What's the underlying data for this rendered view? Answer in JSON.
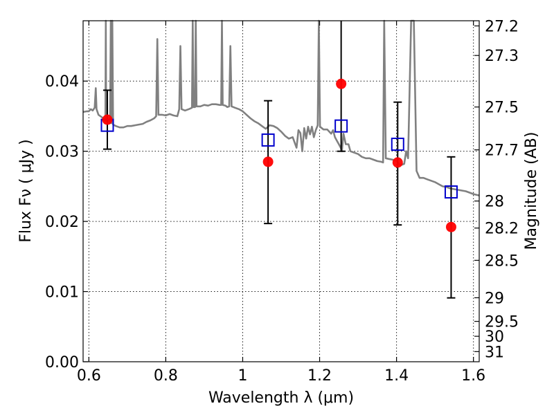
{
  "chart_data": {
    "type": "scatter",
    "title": "",
    "xlabel": "Wavelength  λ (μm)",
    "ylabel": "Flux  Fν  ( μJy )",
    "y2label": "Magnitude (AB)",
    "xlim": [
      0.585,
      1.615
    ],
    "ylim": [
      0.0,
      0.0486
    ],
    "grid": true,
    "x_ticks": [
      0.6,
      0.8,
      1.0,
      1.2,
      1.4,
      1.6
    ],
    "x_tick_labels": [
      "0.6",
      "0.8",
      "1",
      "1.2",
      "1.4",
      "1.6"
    ],
    "y_ticks": [
      0.0,
      0.01,
      0.02,
      0.03,
      0.04
    ],
    "y_tick_labels": [
      "0.00",
      "0.01",
      "0.02",
      "0.03",
      "0.04"
    ],
    "mag_ticks": [
      27.2,
      27.3,
      27.5,
      27.7,
      28,
      28.2,
      28.5,
      29,
      29.5,
      30,
      31
    ],
    "mag_tick_labels": [
      "27.2",
      "27.3",
      "27.5",
      "27.7",
      "28",
      "28.2",
      "28.5",
      "29",
      "29.5",
      "30",
      "31"
    ],
    "series": [
      {
        "marker": "circle",
        "color": "#ff0000",
        "points": [
          [
            0.648,
            0.0345
          ],
          [
            1.066,
            0.0285
          ],
          [
            1.256,
            0.0396
          ],
          [
            1.403,
            0.0284
          ],
          [
            1.542,
            0.0192
          ]
        ]
      },
      {
        "marker": "open-square",
        "color": "#0000cc",
        "points": [
          [
            0.648,
            0.0337
          ],
          [
            1.066,
            0.0316
          ],
          [
            1.256,
            0.0336
          ],
          [
            1.403,
            0.031
          ],
          [
            1.542,
            0.0242
          ]
        ]
      }
    ],
    "error_bars": [
      {
        "x": 0.648,
        "low": 0.0303,
        "high": 0.0387
      },
      {
        "x": 1.066,
        "low": 0.0197,
        "high": 0.0372
      },
      {
        "x": 1.256,
        "low": 0.03,
        "high": 0.049
      },
      {
        "x": 1.403,
        "low": 0.0195,
        "high": 0.037
      },
      {
        "x": 1.542,
        "low": 0.0091,
        "high": 0.0292
      }
    ],
    "model_spectrum": {
      "color": "#808080",
      "points": [
        [
          0.585,
          0.0356
        ],
        [
          0.595,
          0.0357
        ],
        [
          0.6,
          0.0357
        ],
        [
          0.605,
          0.036
        ],
        [
          0.61,
          0.0358
        ],
        [
          0.615,
          0.0362
        ],
        [
          0.618,
          0.039
        ],
        [
          0.62,
          0.036
        ],
        [
          0.625,
          0.0352
        ],
        [
          0.63,
          0.035
        ],
        [
          0.635,
          0.0348
        ],
        [
          0.64,
          0.0345
        ],
        [
          0.643,
          0.0342
        ],
        [
          0.644,
          0.0486
        ],
        [
          0.645,
          0.0345
        ],
        [
          0.65,
          0.0343
        ],
        [
          0.655,
          0.034
        ],
        [
          0.657,
          0.0486
        ],
        [
          0.659,
          0.034
        ],
        [
          0.661,
          0.0486
        ],
        [
          0.663,
          0.0338
        ],
        [
          0.67,
          0.0336
        ],
        [
          0.68,
          0.0334
        ],
        [
          0.69,
          0.0334
        ],
        [
          0.7,
          0.0336
        ],
        [
          0.71,
          0.0336
        ],
        [
          0.72,
          0.0337
        ],
        [
          0.73,
          0.0338
        ],
        [
          0.74,
          0.0339
        ],
        [
          0.75,
          0.0342
        ],
        [
          0.76,
          0.0344
        ],
        [
          0.77,
          0.0347
        ],
        [
          0.775,
          0.035
        ],
        [
          0.778,
          0.046
        ],
        [
          0.781,
          0.0352
        ],
        [
          0.79,
          0.0352
        ],
        [
          0.8,
          0.0351
        ],
        [
          0.81,
          0.0353
        ],
        [
          0.82,
          0.0351
        ],
        [
          0.83,
          0.035
        ],
        [
          0.835,
          0.036
        ],
        [
          0.838,
          0.045
        ],
        [
          0.841,
          0.036
        ],
        [
          0.85,
          0.0358
        ],
        [
          0.86,
          0.036
        ],
        [
          0.868,
          0.0362
        ],
        [
          0.87,
          0.0486
        ],
        [
          0.872,
          0.0363
        ],
        [
          0.876,
          0.0363
        ],
        [
          0.878,
          0.0486
        ],
        [
          0.88,
          0.0364
        ],
        [
          0.89,
          0.0364
        ],
        [
          0.9,
          0.0366
        ],
        [
          0.91,
          0.0365
        ],
        [
          0.92,
          0.0367
        ],
        [
          0.93,
          0.0367
        ],
        [
          0.94,
          0.0366
        ],
        [
          0.944,
          0.0366
        ],
        [
          0.946,
          0.0486
        ],
        [
          0.948,
          0.0366
        ],
        [
          0.955,
          0.0365
        ],
        [
          0.96,
          0.0363
        ],
        [
          0.965,
          0.0364
        ],
        [
          0.968,
          0.045
        ],
        [
          0.971,
          0.0364
        ],
        [
          0.98,
          0.0362
        ],
        [
          0.99,
          0.036
        ],
        [
          1.0,
          0.0357
        ],
        [
          1.01,
          0.0352
        ],
        [
          1.02,
          0.0347
        ],
        [
          1.03,
          0.0343
        ],
        [
          1.04,
          0.034
        ],
        [
          1.05,
          0.0336
        ],
        [
          1.06,
          0.0332
        ],
        [
          1.07,
          0.0337
        ],
        [
          1.08,
          0.0336
        ],
        [
          1.09,
          0.0333
        ],
        [
          1.1,
          0.0328
        ],
        [
          1.11,
          0.0322
        ],
        [
          1.12,
          0.0318
        ],
        [
          1.13,
          0.032
        ],
        [
          1.14,
          0.0305
        ],
        [
          1.145,
          0.033
        ],
        [
          1.15,
          0.0326
        ],
        [
          1.155,
          0.03
        ],
        [
          1.16,
          0.0333
        ],
        [
          1.165,
          0.0318
        ],
        [
          1.17,
          0.0335
        ],
        [
          1.175,
          0.0324
        ],
        [
          1.18,
          0.0335
        ],
        [
          1.185,
          0.032
        ],
        [
          1.19,
          0.033
        ],
        [
          1.195,
          0.0337
        ],
        [
          1.198,
          0.0486
        ],
        [
          1.201,
          0.0335
        ],
        [
          1.21,
          0.0331
        ],
        [
          1.22,
          0.0331
        ],
        [
          1.23,
          0.0325
        ],
        [
          1.235,
          0.033
        ],
        [
          1.24,
          0.032
        ],
        [
          1.245,
          0.0315
        ],
        [
          1.25,
          0.031
        ],
        [
          1.255,
          0.0305
        ],
        [
          1.258,
          0.03
        ],
        [
          1.262,
          0.0325
        ],
        [
          1.268,
          0.031
        ],
        [
          1.275,
          0.031
        ],
        [
          1.28,
          0.03
        ],
        [
          1.29,
          0.0298
        ],
        [
          1.3,
          0.0296
        ],
        [
          1.31,
          0.0292
        ],
        [
          1.32,
          0.029
        ],
        [
          1.33,
          0.029
        ],
        [
          1.34,
          0.0288
        ],
        [
          1.35,
          0.0286
        ],
        [
          1.36,
          0.0285
        ],
        [
          1.365,
          0.0284
        ],
        [
          1.368,
          0.0486
        ],
        [
          1.372,
          0.029
        ],
        [
          1.38,
          0.0289
        ],
        [
          1.39,
          0.0288
        ],
        [
          1.4,
          0.0286
        ],
        [
          1.41,
          0.028
        ],
        [
          1.42,
          0.0282
        ],
        [
          1.425,
          0.03
        ],
        [
          1.43,
          0.029
        ],
        [
          1.438,
          0.0486
        ],
        [
          1.445,
          0.0486
        ],
        [
          1.452,
          0.0272
        ],
        [
          1.46,
          0.0262
        ],
        [
          1.47,
          0.0262
        ],
        [
          1.48,
          0.026
        ],
        [
          1.49,
          0.0258
        ],
        [
          1.5,
          0.0256
        ],
        [
          1.51,
          0.0253
        ],
        [
          1.52,
          0.025
        ],
        [
          1.53,
          0.0249
        ],
        [
          1.54,
          0.0247
        ],
        [
          1.55,
          0.0246
        ],
        [
          1.56,
          0.0245
        ],
        [
          1.57,
          0.0244
        ],
        [
          1.58,
          0.0243
        ],
        [
          1.59,
          0.0241
        ],
        [
          1.6,
          0.0239
        ],
        [
          1.615,
          0.0237
        ]
      ]
    }
  }
}
